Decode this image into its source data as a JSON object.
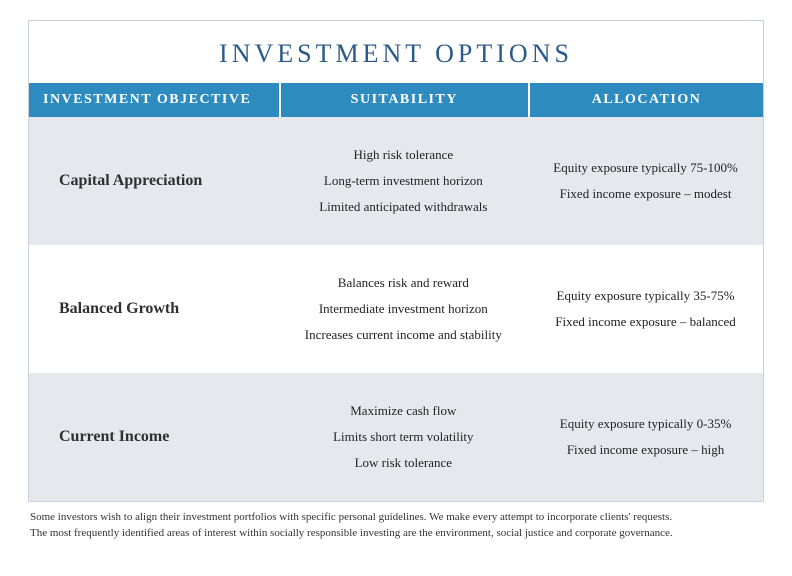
{
  "title": "INVESTMENT OPTIONS",
  "headers": {
    "objective": "INVESTMENT OBJECTIVE",
    "suitability": "SUITABILITY",
    "allocation": "ALLOCATION"
  },
  "rows": [
    {
      "objective": "Capital Appreciation",
      "suitability": [
        "High risk tolerance",
        "Long-term investment horizon",
        "Limited anticipated withdrawals"
      ],
      "allocation": [
        "Equity exposure typically 75-100%",
        "Fixed income exposure – modest"
      ],
      "alt": true
    },
    {
      "objective": "Balanced Growth",
      "suitability": [
        "Balances risk and reward",
        "Intermediate investment horizon",
        "Increases current income and stability"
      ],
      "allocation": [
        "Equity exposure typically 35-75%",
        "Fixed income exposure – balanced"
      ],
      "alt": false
    },
    {
      "objective": "Current Income",
      "suitability": [
        "Maximize cash flow",
        "Limits short term volatility",
        "Low risk tolerance"
      ],
      "allocation": [
        "Equity exposure typically 0-35%",
        "Fixed income exposure – high"
      ],
      "alt": true
    }
  ],
  "footnote_line1": "Some investors wish to align their investment portfolios with specific personal guidelines. We make every attempt to incorporate clients' requests.",
  "footnote_line2": "The most frequently identified areas of interest within socially responsible investing are the environment, social justice and corporate governance.",
  "colors": {
    "title": "#2a5a8a",
    "header_bg": "#2d8bc0",
    "header_text": "#ffffff",
    "alt_row_bg": "#e5e9ed",
    "border": "#c8d0d8",
    "body_bg": "#ffffff"
  }
}
